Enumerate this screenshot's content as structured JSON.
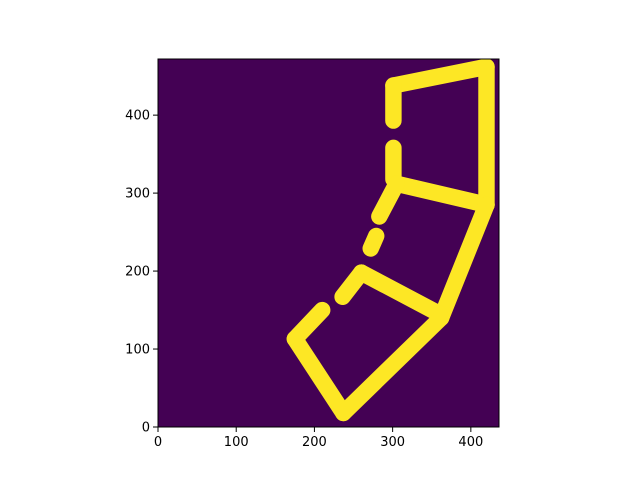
{
  "chart_data": {
    "type": "heatmap",
    "title": "",
    "xlabel": "",
    "ylabel": "",
    "xlim": [
      0,
      436
    ],
    "ylim": [
      0,
      472
    ],
    "y_origin": "lower",
    "x_ticks": [
      0,
      100,
      200,
      300,
      400
    ],
    "y_ticks": [
      0,
      100,
      200,
      300,
      400
    ],
    "colormap": "viridis",
    "colors": {
      "background": "#440154",
      "foreground": "#fde725"
    },
    "values": [
      0,
      1
    ],
    "mask_stroke_width": 21,
    "grid": false,
    "legend": "none",
    "segments": [
      {
        "x1": 301,
        "y1": 438,
        "x2": 420,
        "y2": 462
      },
      {
        "x1": 420,
        "y1": 462,
        "x2": 420,
        "y2": 285
      },
      {
        "x1": 420,
        "y1": 285,
        "x2": 305,
        "y2": 312
      },
      {
        "x1": 420,
        "y1": 285,
        "x2": 362,
        "y2": 140
      },
      {
        "x1": 301,
        "y1": 438,
        "x2": 301,
        "y2": 393
      },
      {
        "x1": 301,
        "y1": 358,
        "x2": 301,
        "y2": 318
      },
      {
        "x1": 305,
        "y1": 312,
        "x2": 283,
        "y2": 270
      },
      {
        "x1": 279,
        "y1": 245,
        "x2": 272,
        "y2": 229
      },
      {
        "x1": 260,
        "y1": 198,
        "x2": 360,
        "y2": 145
      },
      {
        "x1": 260,
        "y1": 198,
        "x2": 236,
        "y2": 167
      },
      {
        "x1": 210,
        "y1": 150,
        "x2": 175,
        "y2": 113
      },
      {
        "x1": 175,
        "y1": 113,
        "x2": 237,
        "y2": 18
      },
      {
        "x1": 237,
        "y1": 18,
        "x2": 362,
        "y2": 140
      }
    ]
  }
}
